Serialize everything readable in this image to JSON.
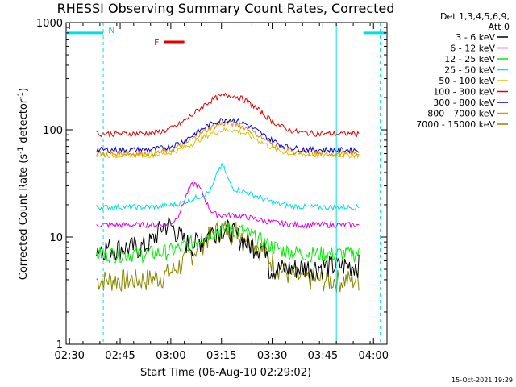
{
  "chart_data": {
    "type": "line",
    "title": "RHESSI Observing Summary Count Rates, Corrected",
    "xlabel": "Start Time (06-Aug-10 02:29:02)",
    "ylabel_main": "Corrected Count Rate (s",
    "ylabel_sup1": "-1",
    "ylabel_mid": " detector",
    "ylabel_sup2": "-1",
    "ylabel_end": ")",
    "y_scale": "log",
    "ylim": [
      1,
      1000
    ],
    "xlim_minutes": [
      0,
      95
    ],
    "y_ticks": [
      {
        "value": 1,
        "label": "1"
      },
      {
        "value": 10,
        "label": "10"
      },
      {
        "value": 100,
        "label": "100"
      },
      {
        "value": 1000,
        "label": "1000"
      }
    ],
    "x_ticks": [
      {
        "minutes": 1,
        "label": "02:30"
      },
      {
        "minutes": 16,
        "label": "02:45"
      },
      {
        "minutes": 31,
        "label": "03:00"
      },
      {
        "minutes": 46,
        "label": "03:15"
      },
      {
        "minutes": 61,
        "label": "03:30"
      },
      {
        "minutes": 76,
        "label": "03:45"
      },
      {
        "minutes": 91,
        "label": "04:00"
      }
    ],
    "legend_header": [
      "Det 1,3,4,5,6,9,",
      "Att 0"
    ],
    "legend_placement": "right, outside plot",
    "series": [
      {
        "name": "3 - 6 keV",
        "color": "#000000",
        "base": 8,
        "peak": 12,
        "wide": 14
      },
      {
        "name": "6 - 12 keV",
        "color": "#e000e0",
        "base": 13,
        "peak": 30,
        "wide": 14
      },
      {
        "name": "12 - 25 keV",
        "color": "#00ee00",
        "base": 7,
        "peak": 15,
        "wide": 12
      },
      {
        "name": "25 - 50 keV",
        "color": "#00e0e0",
        "base": 19,
        "peak": 55,
        "wide": 40
      },
      {
        "name": "50 - 100 keV",
        "color": "#d4c800",
        "base": 58,
        "peak": 100,
        "wide": 100
      },
      {
        "name": "100 - 300 keV",
        "color": "#e00000",
        "base": 92,
        "peak": 210,
        "wide": 210
      },
      {
        "name": "300 - 800 keV",
        "color": "#0000dd",
        "base": 65,
        "peak": 125,
        "wide": 125
      },
      {
        "name": "800 - 7000 keV",
        "color": "#ee8800",
        "base": 60,
        "peak": 115,
        "wide": 115
      },
      {
        "name": "7000 - 15000 keV",
        "color": "#888800",
        "base": 4,
        "peak": 12,
        "wide": 12
      }
    ],
    "annotations": [
      {
        "label": "N",
        "color": "#00e0e0",
        "from_minutes": 0,
        "to_minutes": 11,
        "level": 800
      },
      {
        "label": "",
        "color": "#00e0e0",
        "from_minutes": 88,
        "to_minutes": 95,
        "level": 800
      },
      {
        "label": "F",
        "color": "#e00000",
        "from_minutes": 29,
        "to_minutes": 35,
        "level": 660
      }
    ],
    "night_lines_minutes": [
      11,
      93
    ],
    "saa_lines_minutes": [
      80
    ]
  },
  "footer_date": "15-Oct-2021 19:29"
}
